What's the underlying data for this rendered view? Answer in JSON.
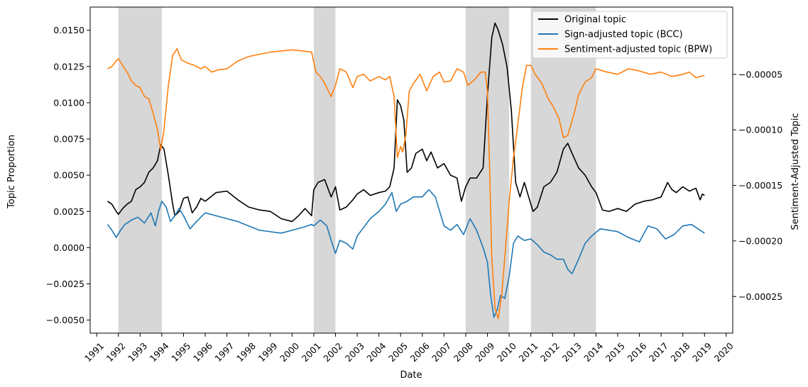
{
  "chart_data": {
    "type": "line",
    "title": "",
    "xlabel": "Date",
    "ylabel_left": "Topic Proportion",
    "ylabel_right": "Sentiment-Adjusted Topic",
    "xlim": [
      1990.7,
      2020.3
    ],
    "ylim_left": [
      -0.0059,
      0.0166
    ],
    "ylim_right": [
      -0.000283,
      1.05e-05
    ],
    "x_ticks": [
      "1991",
      "1992",
      "1993",
      "1994",
      "1995",
      "1996",
      "1997",
      "1998",
      "1999",
      "2000",
      "2001",
      "2002",
      "2003",
      "2004",
      "2005",
      "2006",
      "2007",
      "2008",
      "2009",
      "2010",
      "2011",
      "2012",
      "2013",
      "2014",
      "2015",
      "2016",
      "2017",
      "2018",
      "2019",
      "2020"
    ],
    "y_ticks_left": [
      "−0.0050",
      "−0.0025",
      "0.0000",
      "0.0025",
      "0.0050",
      "0.0075",
      "0.0100",
      "0.0125",
      "0.0150"
    ],
    "y_ticks_right": [
      "−0.00025",
      "−0.00020",
      "−0.00015",
      "−0.00010",
      "−0.00005"
    ],
    "shaded_periods": [
      [
        1992.0,
        1994.0
      ],
      [
        2001.0,
        2002.0
      ],
      [
        2008.0,
        2010.0
      ],
      [
        2011.0,
        2014.0
      ]
    ],
    "legend_position": "upper right",
    "series": [
      {
        "name": "Original topic",
        "axis": "left",
        "color": "#000000",
        "x": [
          1991.5,
          1991.7,
          1991.9,
          1992.0,
          1992.2,
          1992.4,
          1992.6,
          1992.8,
          1993.0,
          1993.2,
          1993.4,
          1993.6,
          1993.8,
          1993.95,
          1994.1,
          1994.3,
          1994.5,
          1994.6,
          1994.8,
          1995.0,
          1995.2,
          1995.4,
          1995.6,
          1995.8,
          1996.0,
          1996.5,
          1997.0,
          1997.5,
          1998.0,
          1998.5,
          1999.0,
          1999.5,
          2000.0,
          2000.3,
          2000.6,
          2000.9,
          2001.0,
          2001.2,
          2001.5,
          2001.8,
          2002.0,
          2002.2,
          2002.5,
          2002.8,
          2003.0,
          2003.3,
          2003.6,
          2004.0,
          2004.3,
          2004.5,
          2004.7,
          2004.85,
          2005.0,
          2005.15,
          2005.3,
          2005.5,
          2005.7,
          2006.0,
          2006.2,
          2006.4,
          2006.7,
          2007.0,
          2007.3,
          2007.6,
          2007.8,
          2008.0,
          2008.2,
          2008.5,
          2008.8,
          2009.0,
          2009.2,
          2009.35,
          2009.5,
          2009.7,
          2009.9,
          2010.1,
          2010.3,
          2010.5,
          2010.7,
          2010.9,
          2011.1,
          2011.3,
          2011.6,
          2011.9,
          2012.2,
          2012.5,
          2012.7,
          2012.9,
          2013.2,
          2013.5,
          2013.8,
          2014.0,
          2014.3,
          2014.6,
          2015.0,
          2015.4,
          2015.8,
          2016.2,
          2016.6,
          2017.0,
          2017.3,
          2017.5,
          2017.7,
          2018.0,
          2018.3,
          2018.6,
          2018.8,
          2018.9,
          2019.0
        ],
        "y": [
          0.0032,
          0.003,
          0.0025,
          0.0023,
          0.0027,
          0.003,
          0.0032,
          0.004,
          0.0042,
          0.0045,
          0.0052,
          0.0055,
          0.006,
          0.0071,
          0.0068,
          0.005,
          0.003,
          0.0022,
          0.0025,
          0.0034,
          0.0035,
          0.0024,
          0.0028,
          0.0034,
          0.0032,
          0.0038,
          0.0039,
          0.0033,
          0.0028,
          0.0026,
          0.0025,
          0.002,
          0.0018,
          0.0022,
          0.0027,
          0.0022,
          0.004,
          0.0045,
          0.0047,
          0.0035,
          0.0042,
          0.0026,
          0.0028,
          0.0033,
          0.0037,
          0.004,
          0.0036,
          0.0038,
          0.0039,
          0.0042,
          0.0055,
          0.0102,
          0.0098,
          0.0088,
          0.0052,
          0.0055,
          0.0065,
          0.0068,
          0.006,
          0.0066,
          0.0055,
          0.0058,
          0.005,
          0.0048,
          0.0032,
          0.0042,
          0.0048,
          0.0048,
          0.0055,
          0.0105,
          0.0145,
          0.0155,
          0.015,
          0.014,
          0.0125,
          0.0095,
          0.0045,
          0.0035,
          0.0045,
          0.0035,
          0.0025,
          0.0028,
          0.0042,
          0.0045,
          0.0052,
          0.0068,
          0.0072,
          0.0065,
          0.0055,
          0.005,
          0.0042,
          0.0038,
          0.0026,
          0.0025,
          0.0027,
          0.0025,
          0.003,
          0.0032,
          0.0033,
          0.0035,
          0.0045,
          0.004,
          0.0038,
          0.0042,
          0.0039,
          0.0041,
          0.0033,
          0.0037,
          0.0036
        ]
      },
      {
        "name": "Sign-adjusted topic (BCC)",
        "axis": "left",
        "color": "#1f77b4",
        "x": [
          1991.5,
          1991.7,
          1991.9,
          1992.1,
          1992.3,
          1992.6,
          1992.9,
          1993.2,
          1993.5,
          1993.7,
          1993.85,
          1994.0,
          1994.2,
          1994.4,
          1994.6,
          1994.8,
          1995.0,
          1995.3,
          1995.6,
          1996.0,
          1996.5,
          1997.0,
          1997.5,
          1998.0,
          1998.5,
          1999.0,
          1999.5,
          2000.0,
          2000.5,
          2000.9,
          2001.0,
          2001.3,
          2001.6,
          2001.8,
          2002.0,
          2002.2,
          2002.5,
          2002.8,
          2003.0,
          2003.3,
          2003.6,
          2004.0,
          2004.3,
          2004.6,
          2004.8,
          2005.0,
          2005.3,
          2005.6,
          2006.0,
          2006.3,
          2006.6,
          2007.0,
          2007.3,
          2007.6,
          2007.9,
          2008.2,
          2008.5,
          2008.8,
          2009.0,
          2009.15,
          2009.3,
          2009.45,
          2009.6,
          2009.8,
          2010.0,
          2010.2,
          2010.4,
          2010.7,
          2011.0,
          2011.3,
          2011.6,
          2011.9,
          2012.2,
          2012.5,
          2012.7,
          2012.9,
          2013.2,
          2013.5,
          2013.8,
          2014.2,
          2014.6,
          2015.0,
          2015.5,
          2016.0,
          2016.4,
          2016.8,
          2017.2,
          2017.6,
          2018.0,
          2018.4,
          2018.7,
          2019.0
        ],
        "y": [
          0.0016,
          0.0012,
          0.0007,
          0.0012,
          0.0016,
          0.0019,
          0.0021,
          0.0017,
          0.0024,
          0.0015,
          0.0025,
          0.0032,
          0.0028,
          0.0018,
          0.0022,
          0.0027,
          0.0022,
          0.0013,
          0.0018,
          0.0024,
          0.0022,
          0.002,
          0.0018,
          0.0015,
          0.0012,
          0.0011,
          0.001,
          0.0012,
          0.0014,
          0.0016,
          0.0015,
          0.0019,
          0.0015,
          0.0005,
          -0.0004,
          0.0005,
          0.0003,
          -0.0001,
          0.0008,
          0.0014,
          0.002,
          0.0025,
          0.003,
          0.0038,
          0.0025,
          0.003,
          0.0032,
          0.0035,
          0.0035,
          0.004,
          0.0035,
          0.0015,
          0.0012,
          0.0016,
          0.0009,
          0.002,
          0.0012,
          0.0,
          -0.001,
          -0.0033,
          -0.0048,
          -0.0043,
          -0.0033,
          -0.0035,
          -0.002,
          0.0003,
          0.0008,
          0.0005,
          0.0006,
          0.0002,
          -0.0003,
          -0.0005,
          -0.0008,
          -0.0008,
          -0.0015,
          -0.0018,
          -0.0008,
          0.0003,
          0.0008,
          0.0013,
          0.0012,
          0.0011,
          0.0007,
          0.0004,
          0.0015,
          0.0013,
          0.0006,
          0.0009,
          0.0015,
          0.0016,
          0.0013,
          0.001
        ]
      },
      {
        "name": "Sentiment-adjusted topic (BPW)",
        "axis": "right",
        "color": "#ff7f0e",
        "x": [
          1991.5,
          1991.7,
          1991.9,
          1992.0,
          1992.2,
          1992.4,
          1992.6,
          1992.8,
          1993.0,
          1993.2,
          1993.4,
          1993.6,
          1993.8,
          1993.95,
          1994.1,
          1994.3,
          1994.5,
          1994.7,
          1994.9,
          1995.2,
          1995.5,
          1995.8,
          1996.0,
          1996.3,
          1996.6,
          1997.0,
          1997.5,
          1998.0,
          1998.5,
          1999.0,
          1999.5,
          2000.0,
          2000.5,
          2000.9,
          2001.1,
          2001.3,
          2001.5,
          2001.8,
          2002.0,
          2002.2,
          2002.5,
          2002.8,
          2003.0,
          2003.3,
          2003.6,
          2004.0,
          2004.3,
          2004.5,
          2004.7,
          2004.85,
          2005.0,
          2005.1,
          2005.25,
          2005.4,
          2005.6,
          2005.9,
          2006.2,
          2006.5,
          2006.8,
          2007.0,
          2007.3,
          2007.6,
          2007.9,
          2008.1,
          2008.4,
          2008.7,
          2008.9,
          2009.0,
          2009.1,
          2009.2,
          2009.35,
          2009.5,
          2009.65,
          2009.8,
          2010.0,
          2010.2,
          2010.4,
          2010.6,
          2010.8,
          2011.0,
          2011.2,
          2011.5,
          2011.8,
          2012.0,
          2012.3,
          2012.5,
          2012.7,
          2013.0,
          2013.2,
          2013.5,
          2013.8,
          2014.0,
          2014.5,
          2015.0,
          2015.5,
          2016.0,
          2016.5,
          2017.0,
          2017.5,
          2018.0,
          2018.3,
          2018.6,
          2018.8,
          2019.0
        ],
        "y": [
          -4.5e-05,
          -4.3e-05,
          -3.8e-05,
          -3.6e-05,
          -4.2e-05,
          -4.8e-05,
          -5.6e-05,
          -6e-05,
          -6.2e-05,
          -7e-05,
          -7.2e-05,
          -8.5e-05,
          -0.0001,
          -0.000118,
          -0.0001,
          -6e-05,
          -3.3e-05,
          -2.7e-05,
          -3.7e-05,
          -4e-05,
          -4.2e-05,
          -4.5e-05,
          -4.3e-05,
          -4.8e-05,
          -4.6e-05,
          -4.5e-05,
          -3.8e-05,
          -3.4e-05,
          -3.2e-05,
          -3e-05,
          -2.9e-05,
          -2.8e-05,
          -2.9e-05,
          -3e-05,
          -4.8e-05,
          -5.2e-05,
          -5.8e-05,
          -7e-05,
          -6e-05,
          -4.5e-05,
          -4.8e-05,
          -6.2e-05,
          -5.2e-05,
          -5e-05,
          -5.6e-05,
          -5.2e-05,
          -5.5e-05,
          -5.2e-05,
          -7e-05,
          -0.000125,
          -0.000115,
          -0.00012,
          -0.000103,
          -6.5e-05,
          -5.8e-05,
          -5e-05,
          -6.5e-05,
          -5.2e-05,
          -4.8e-05,
          -5.7e-05,
          -5.6e-05,
          -4.5e-05,
          -4.8e-05,
          -6e-05,
          -5.5e-05,
          -4.8e-05,
          -4.8e-05,
          -6.5e-05,
          -0.000135,
          -0.000215,
          -0.00026,
          -0.00027,
          -0.00025,
          -0.000215,
          -0.000165,
          -0.000125,
          -9.5e-05,
          -6.3e-05,
          -4.2e-05,
          -4.2e-05,
          -5e-05,
          -5.8e-05,
          -7.2e-05,
          -7.8e-05,
          -9e-05,
          -0.000107,
          -0.000105,
          -8.5e-05,
          -6.8e-05,
          -5.7e-05,
          -5.3e-05,
          -4.5e-05,
          -4.8e-05,
          -5e-05,
          -4.5e-05,
          -4.7e-05,
          -5e-05,
          -4.8e-05,
          -5.2e-05,
          -5e-05,
          -4.8e-05,
          -5.3e-05,
          -5.2e-05,
          -5.1e-05
        ]
      }
    ]
  }
}
